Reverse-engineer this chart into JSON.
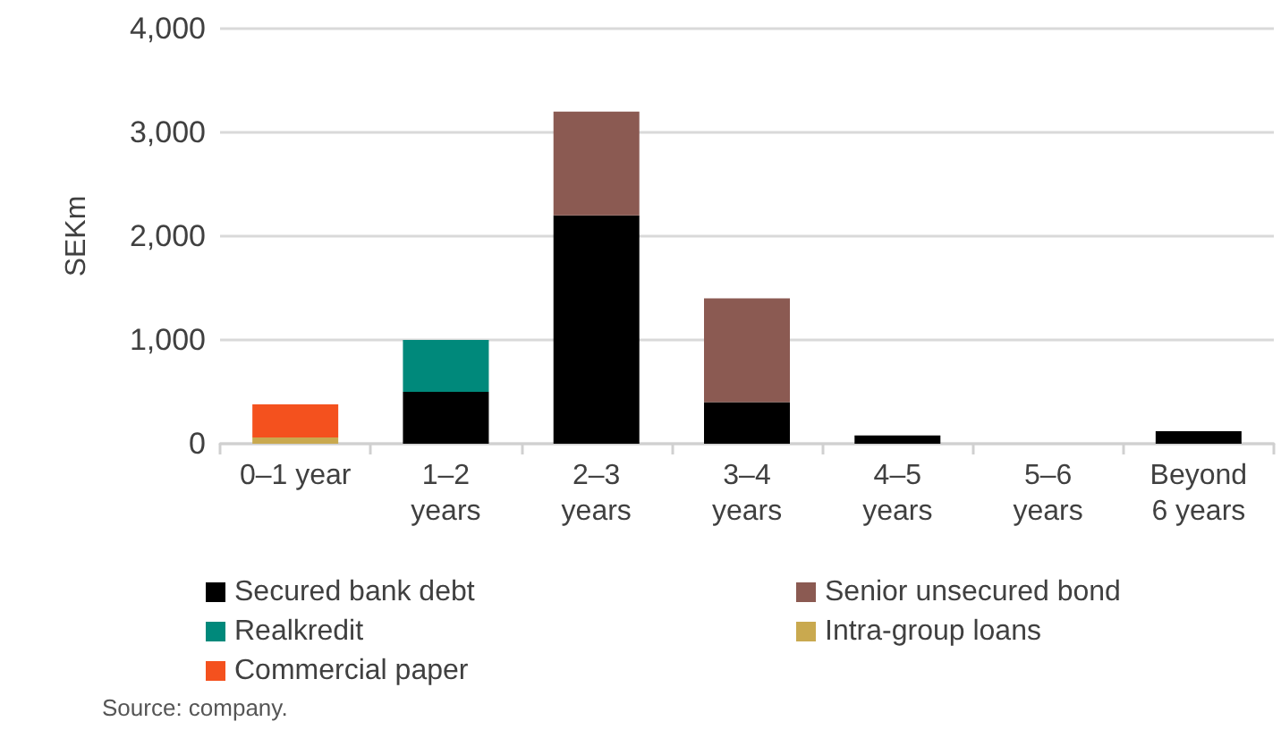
{
  "chart_data": {
    "type": "bar",
    "stacked": true,
    "ylabel": "SEKm",
    "categories": [
      "0–1 year",
      "1–2 years",
      "2–3 years",
      "3–4 years",
      "4–5 years",
      "5–6 years",
      "Beyond 6 years"
    ],
    "series": [
      {
        "name": "Secured bank debt",
        "color": "#000000",
        "values": [
          0,
          500,
          2200,
          400,
          80,
          0,
          120
        ]
      },
      {
        "name": "Senior unsecured bond",
        "color": "#8b5a52",
        "values": [
          0,
          0,
          1000,
          1000,
          0,
          0,
          0
        ]
      },
      {
        "name": "Realkredit",
        "color": "#00897b",
        "values": [
          0,
          500,
          0,
          0,
          0,
          0,
          0
        ]
      },
      {
        "name": "Intra-group loans",
        "color": "#c9a94f",
        "values": [
          60,
          0,
          0,
          0,
          0,
          0,
          0
        ]
      },
      {
        "name": "Commercial paper",
        "color": "#f4511e",
        "values": [
          320,
          0,
          0,
          0,
          0,
          0,
          0
        ]
      }
    ],
    "ylim": [
      0,
      4000
    ],
    "yticks": [
      0,
      {
        "value": 1000,
        "label": "1,000"
      },
      {
        "value": 2000,
        "label": "2,000"
      },
      {
        "value": 3000,
        "label": "3,000"
      },
      {
        "value": 4000,
        "label": "4,000"
      }
    ],
    "grid": "y",
    "legend": "bottom",
    "annotations": [
      "Source: company."
    ]
  }
}
